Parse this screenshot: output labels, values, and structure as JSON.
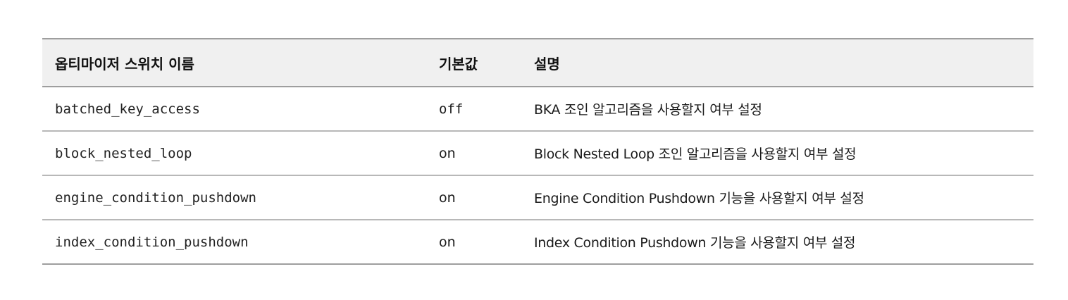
{
  "table": {
    "headers": [
      "옵티마이저 스위치 이름",
      "기본값",
      "설명"
    ],
    "rows": [
      {
        "name": "batched_key_access",
        "default": "off",
        "description": "BKA 조인 알고리즘을 사용할지 여부 설정"
      },
      {
        "name": "block_nested_loop",
        "default": "on",
        "description": "Block Nested Loop 조인 알고리즘을 사용할지 여부 설정"
      },
      {
        "name": "engine_condition_pushdown",
        "default": "on",
        "description": "Engine Condition Pushdown 기능을 사용할지 여부 설정"
      },
      {
        "name": "index_condition_pushdown",
        "default": "on",
        "description": "Index Condition Pushdown 기능을 사용할지 여부 설정"
      }
    ]
  }
}
